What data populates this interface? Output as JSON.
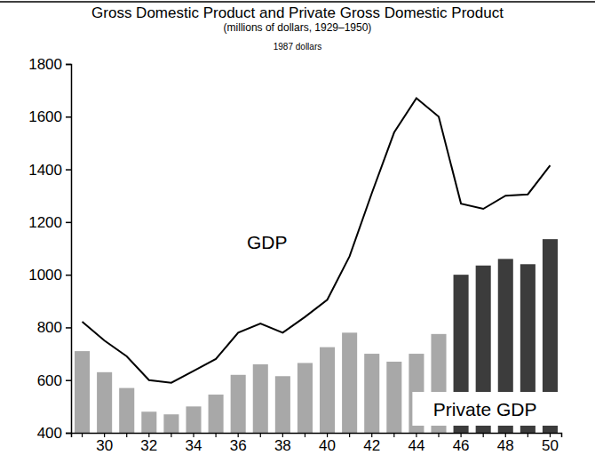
{
  "chart_data": {
    "type": "bar",
    "title": "Gross Domestic Product and Private Gross Domestic Product",
    "subtitle": "(millions of dollars, 1929–1950)",
    "annotations": [
      "1987 dollars"
    ],
    "categories": [
      null,
      "30",
      null,
      "32",
      null,
      "34",
      null,
      "36",
      null,
      "38",
      null,
      "40",
      null,
      "42",
      null,
      "44",
      null,
      "46",
      null,
      "48",
      null,
      "50"
    ],
    "series": [
      {
        "name": "Private GDP",
        "type": "bar",
        "colors": [
          "#a8a8a8",
          "#a8a8a8",
          "#a8a8a8",
          "#a8a8a8",
          "#a8a8a8",
          "#a8a8a8",
          "#a8a8a8",
          "#a8a8a8",
          "#a8a8a8",
          "#a8a8a8",
          "#a8a8a8",
          "#a8a8a8",
          "#a8a8a8",
          "#a8a8a8",
          "#a8a8a8",
          "#a8a8a8",
          "#a8a8a8",
          "#3c3c3c",
          "#3c3c3c",
          "#3c3c3c",
          "#3c3c3c",
          "#3c3c3c"
        ],
        "values": [
          710,
          630,
          570,
          480,
          470,
          500,
          545,
          620,
          660,
          615,
          665,
          725,
          780,
          700,
          670,
          700,
          775,
          1000,
          1035,
          1060,
          1040,
          1135
        ]
      },
      {
        "name": "GDP",
        "type": "line",
        "color": "#000000",
        "values": [
          822,
          750,
          690,
          600,
          590,
          635,
          680,
          780,
          815,
          780,
          840,
          905,
          1070,
          1310,
          1540,
          1670,
          1600,
          1270,
          1250,
          1300,
          1305,
          1415
        ]
      }
    ],
    "ylim": [
      400,
      1800
    ],
    "yticks": [
      400,
      600,
      800,
      1000,
      1200,
      1400,
      1600,
      1800
    ],
    "grid": false
  }
}
